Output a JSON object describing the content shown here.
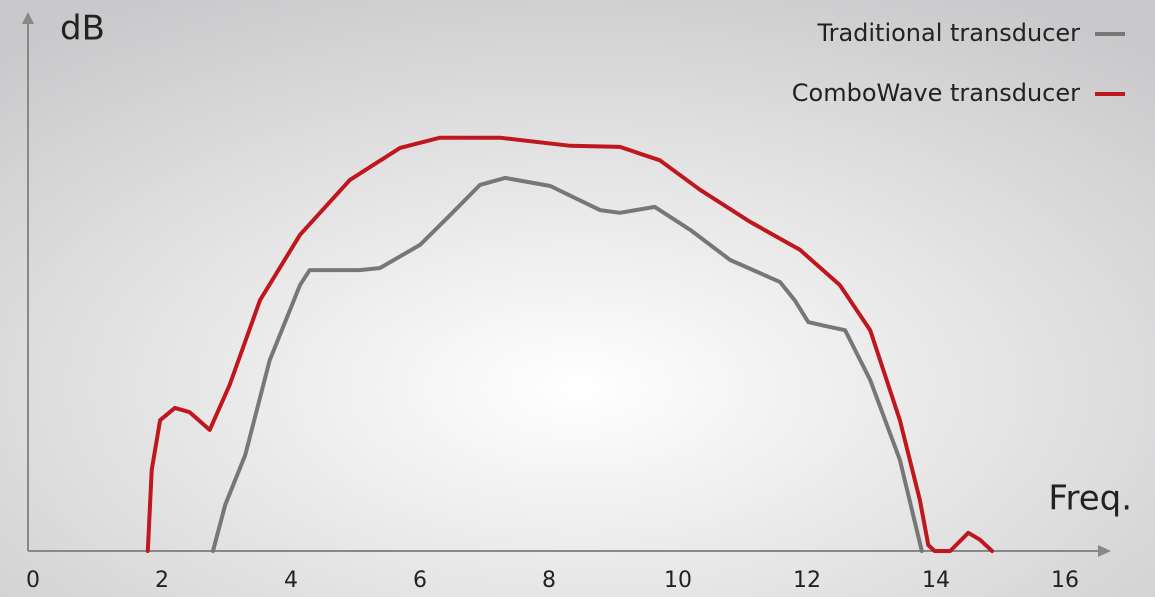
{
  "chart_data": {
    "type": "line",
    "y_label": "dB",
    "x_label": "Freq.",
    "xlim": [
      0,
      16
    ],
    "xticks": [
      0,
      2,
      4,
      6,
      8,
      10,
      12,
      14,
      16
    ],
    "ylim": [
      0,
      100
    ],
    "legend": "upper right",
    "series": [
      {
        "name": "Traditional transducer",
        "color": "#777777",
        "x": [
          2.79,
          2.98,
          3.29,
          3.67,
          4.14,
          4.29,
          5.07,
          5.38,
          6.0,
          6.47,
          6.93,
          7.32,
          8.02,
          8.79,
          9.1,
          9.64,
          10.19,
          10.81,
          11.58,
          11.81,
          12.02,
          12.28,
          12.59,
          12.98,
          13.44,
          13.78
        ],
        "values": [
          0,
          8.6,
          17.9,
          35.6,
          49.6,
          52.4,
          52.4,
          52.8,
          57.1,
          62.7,
          68.3,
          69.6,
          68.1,
          63.6,
          63.1,
          64.2,
          59.9,
          54.3,
          50.2,
          46.8,
          42.7,
          42.0,
          41.2,
          31.9,
          17.0,
          0
        ]
      },
      {
        "name": "ComboWave transducer",
        "color": "#c0161e",
        "x": [
          1.78,
          1.84,
          1.97,
          2.2,
          2.43,
          2.74,
          3.05,
          3.52,
          4.14,
          4.91,
          5.69,
          6.31,
          7.24,
          8.33,
          9.1,
          9.72,
          10.34,
          11.12,
          11.89,
          12.51,
          12.98,
          13.44,
          13.75,
          13.88,
          13.98,
          14.22,
          14.5,
          14.68,
          14.87
        ],
        "values": [
          0,
          15.1,
          24.4,
          26.7,
          25.9,
          22.6,
          31.0,
          46.8,
          59.0,
          69.2,
          75.2,
          77.1,
          77.1,
          75.6,
          75.4,
          72.9,
          67.4,
          61.4,
          56.2,
          49.6,
          41.2,
          24.4,
          9.5,
          1.1,
          0,
          0,
          3.4,
          2.1,
          0
        ]
      }
    ]
  }
}
